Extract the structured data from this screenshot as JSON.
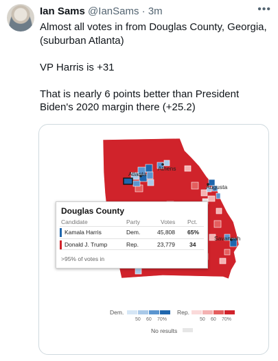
{
  "tweet": {
    "display_name": "Ian Sams",
    "handle": "@IanSams",
    "separator": "·",
    "time": "3m",
    "more_icon": "more-dots-icon",
    "paragraphs": [
      "Almost all votes in from Douglas County, Georgia, (suburban Atlanta)",
      "VP Harris is +31",
      "That is nearly 6 points better than President Biden's 2020 margin there (+25.2)"
    ]
  },
  "map": {
    "city_labels": {
      "athens": "Athens",
      "atlanta": "Atlanta",
      "augusta": "Augusta",
      "savannah": "Savannah"
    },
    "colors": {
      "dem_dark": "#1f66ad",
      "dem_mid": "#5b95cf",
      "dem_light": "#a9c9e8",
      "rep_dark": "#d0232b",
      "rep_mid": "#e45e5e",
      "rep_light": "#f4b2b2",
      "no_results": "#e6e6e6"
    }
  },
  "popup": {
    "title": "Douglas County",
    "columns": {
      "candidate": "Candidate",
      "party": "Party",
      "votes": "Votes",
      "pct": "Pct."
    },
    "rows": [
      {
        "candidate": "Kamala Harris",
        "party": "Dem.",
        "votes": "45,808",
        "pct": "65%",
        "color": "#1f66ad"
      },
      {
        "candidate": "Donald J. Trump",
        "party": "Rep.",
        "votes": "23,779",
        "pct": "34",
        "color": "#d0232b"
      }
    ],
    "votes_in": ">95% of votes in"
  },
  "legend": {
    "dem_label": "Dem.",
    "rep_label": "Rep.",
    "dem_ticks": [
      "50",
      "60",
      "70%"
    ],
    "rep_ticks": [
      "50",
      "60",
      "70%"
    ],
    "no_results_label": "No results"
  }
}
